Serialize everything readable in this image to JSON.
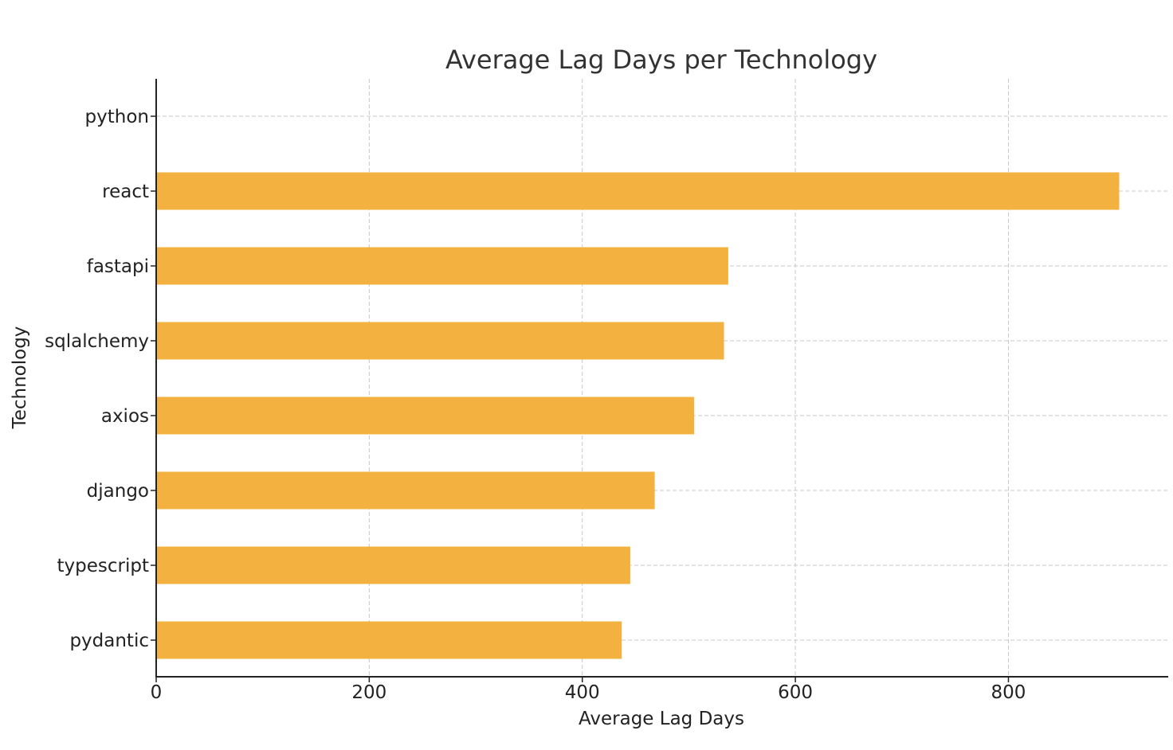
{
  "chart_data": {
    "type": "bar",
    "orientation": "horizontal",
    "title": "Average Lag Days per Technology",
    "xlabel": "Average Lag Days",
    "ylabel": "Technology",
    "categories": [
      "python",
      "react",
      "fastapi",
      "sqlalchemy",
      "axios",
      "django",
      "typescript",
      "pydantic"
    ],
    "values": [
      0,
      904,
      537,
      533,
      505,
      468,
      445,
      437
    ],
    "xlim": [
      0,
      950
    ],
    "xticks": [
      0,
      200,
      400,
      600,
      800
    ],
    "grid": true,
    "bar_color": "#F3B13F"
  }
}
